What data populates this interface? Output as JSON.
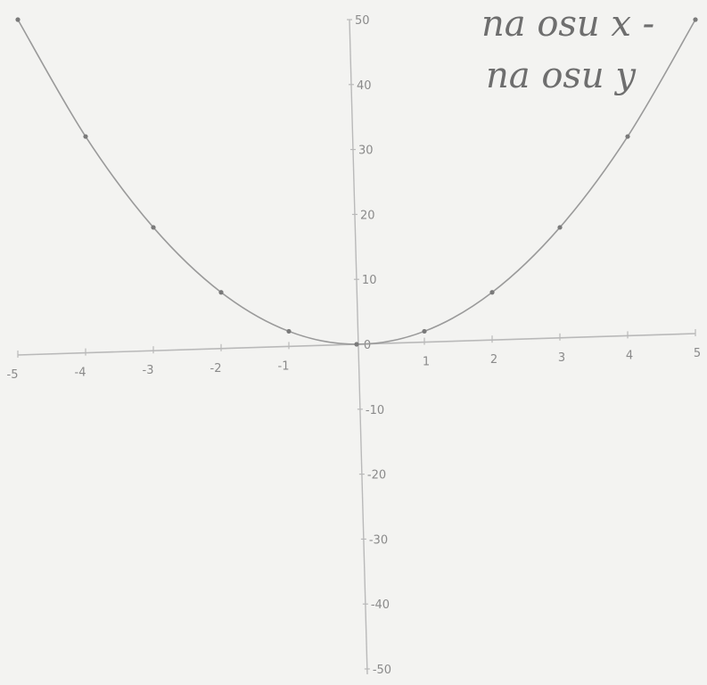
{
  "chart_data": {
    "type": "line",
    "title": "",
    "xlabel": "",
    "ylabel": "",
    "xlim": [
      -5,
      5
    ],
    "ylim": [
      -50,
      50
    ],
    "x_ticks": [
      -5,
      -4,
      -3,
      -2,
      -1,
      1,
      2,
      3,
      4,
      5
    ],
    "x_tick_labels": [
      "-5",
      "-4",
      "-3",
      "-2",
      "-1",
      "1",
      "2",
      "3",
      "4",
      "5"
    ],
    "y_ticks": [
      50,
      40,
      30,
      20,
      10,
      0,
      -10,
      -20,
      -30,
      -40,
      -50
    ],
    "y_tick_labels": [
      "50",
      "40",
      "30",
      "20",
      "10",
      "0",
      "-10",
      "-20",
      "-30",
      "-40",
      "-50"
    ],
    "series": [
      {
        "x": [
          -5,
          -4,
          -3,
          -2,
          -1,
          0,
          1,
          2,
          3,
          4,
          5
        ],
        "y": [
          50,
          32,
          18,
          8,
          2,
          0,
          2,
          8,
          18,
          32,
          50
        ],
        "markers": true
      }
    ],
    "grid": false,
    "legend": "none"
  },
  "notes": {
    "line1": "na osu x -",
    "line2": "na osu y"
  },
  "colors": {
    "paper": "#f3f3f1",
    "axis": "#b9b9b9",
    "curve": "#9a9a9a",
    "marker": "#7a7a7a",
    "text": "#8a8a8a"
  }
}
